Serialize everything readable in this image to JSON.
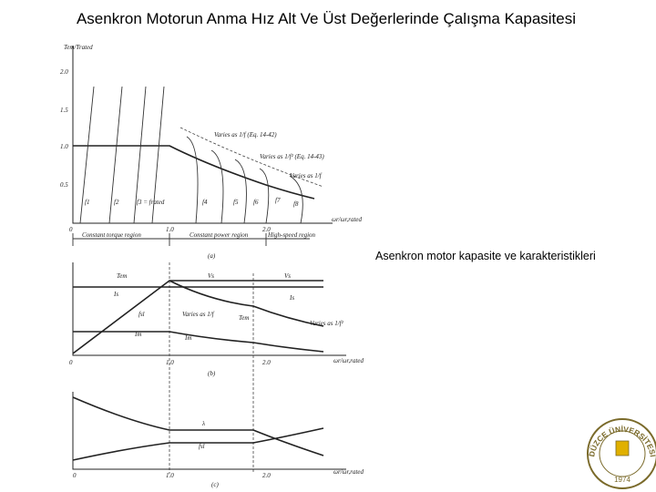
{
  "title": "Asenkron Motorun Anma Hız Alt Ve Üst Değerlerinde Çalışma Kapasitesi",
  "caption": "Asenkron motor kapasite ve karakteristikleri",
  "figure": {
    "a": {
      "y_label": "Tem/Trated",
      "yticks": [
        "2.0",
        "1.5",
        "1.0",
        "0.5",
        "0"
      ],
      "xticks": [
        "1.0",
        "2.0"
      ],
      "x_label": "ωr/ωr,rated",
      "curves": [
        "f1",
        "f2",
        "f3 = frated",
        "f4",
        "f5",
        "f6",
        "f7",
        "f8"
      ],
      "notes": [
        "Varies as 1/f (Eq. 14-42)",
        "Varies as 1/f² (Eq. 14-43)",
        "Varies as 1/f"
      ],
      "regions": [
        "Constant torque region",
        "Constant power region",
        "High-speed region"
      ],
      "panel": "(a)"
    },
    "b": {
      "labels": [
        "Tem",
        "Vs",
        "Vs",
        "Is",
        "Is",
        "fsl",
        "Varies as 1/f",
        "Tem",
        "Varies as 1/f²",
        "Im",
        "Im"
      ],
      "xticks": [
        "0",
        "1.0",
        "2.0"
      ],
      "x_label": "ωr/ωr,rated",
      "panel": "(b)"
    },
    "c": {
      "labels": [
        "λ",
        "fsl"
      ],
      "xticks": [
        "0",
        "1.0",
        "2.0"
      ],
      "x_label": "ωr/ωr,rated",
      "panel": "(c)"
    }
  },
  "logo": {
    "name": "DÜZCE ÜNİVERSİTESİ",
    "year": "1974"
  }
}
